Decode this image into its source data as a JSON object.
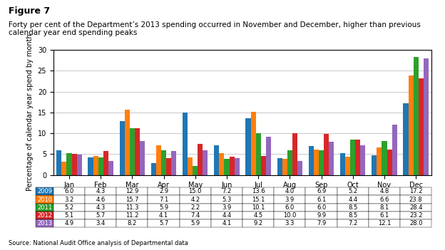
{
  "chart_data": {
    "type": "bar",
    "title": "Figure 7",
    "subtitle": "Forty per cent of the Department’s 2013 spending occurred in November and December, higher than previous calendar year end spending peaks",
    "ylabel": "Percentage of calendar year spend by month",
    "annotations": [
      "Source: National Audit Office analysis of Departmental data"
    ],
    "categories": [
      "Jan",
      "Feb",
      "Mar",
      "Apr",
      "May",
      "Jun",
      "Jul",
      "Aug",
      "Sep",
      "Oct",
      "Nov",
      "Dec"
    ],
    "series": [
      {
        "name": "2009",
        "values": [
          6.0,
          4.3,
          12.9,
          2.9,
          15.0,
          7.2,
          13.6,
          4.0,
          6.9,
          5.2,
          4.8,
          17.2
        ]
      },
      {
        "name": "2010",
        "values": [
          3.2,
          4.6,
          15.7,
          7.1,
          4.2,
          5.3,
          15.1,
          3.9,
          6.1,
          4.4,
          6.6,
          23.8
        ]
      },
      {
        "name": "2011",
        "values": [
          5.2,
          4.3,
          11.3,
          5.9,
          2.2,
          3.9,
          10.1,
          6.0,
          6.0,
          8.5,
          8.1,
          28.4
        ]
      },
      {
        "name": "2012",
        "values": [
          5.1,
          5.7,
          11.2,
          4.1,
          7.4,
          4.4,
          4.5,
          10.0,
          9.9,
          8.5,
          6.1,
          23.2
        ]
      },
      {
        "name": "2013",
        "values": [
          4.9,
          3.4,
          8.2,
          5.7,
          5.9,
          4.1,
          9.2,
          3.3,
          7.9,
          7.2,
          12.1,
          28.0
        ]
      }
    ],
    "ylim": [
      0,
      30
    ],
    "yticks": [
      0,
      5,
      10,
      15,
      20,
      25,
      30
    ],
    "grid": true
  }
}
